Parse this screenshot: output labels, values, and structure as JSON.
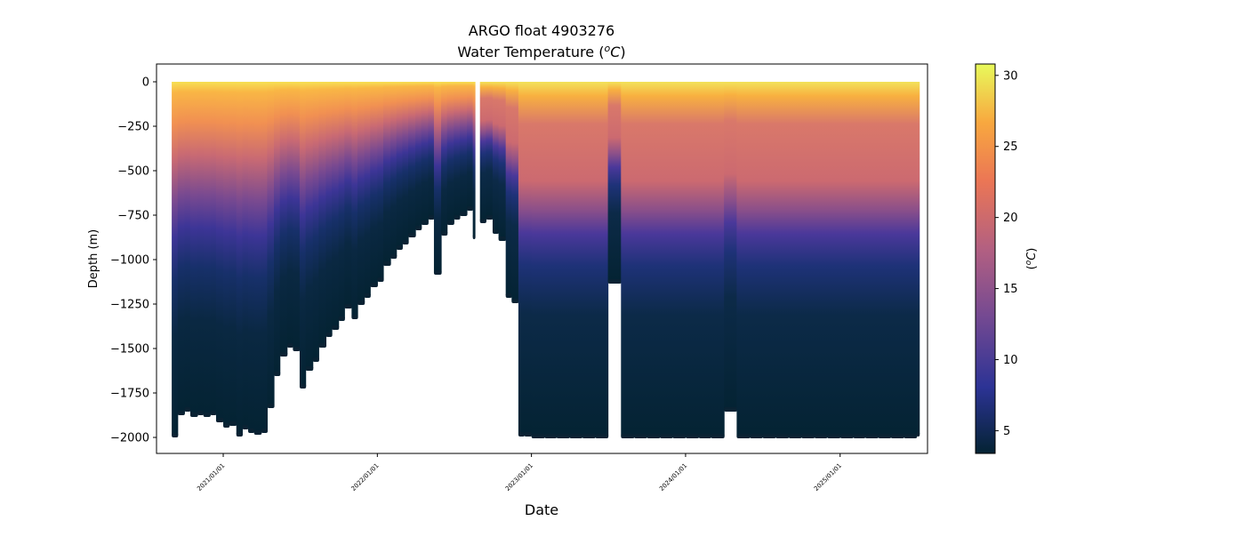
{
  "chart_data": {
    "type": "scatter",
    "title": "ARGO float 4903276",
    "subtitle_prefix": "Water Temperature (",
    "subtitle_unit_sup": "o",
    "subtitle_unit": "C",
    "subtitle_suffix": ")",
    "xlabel": "Date",
    "ylabel": "Depth (m)",
    "colorbar_label_prefix": "(",
    "colorbar_label_sup": "o",
    "colorbar_label_unit": "C",
    "colorbar_label_suffix": ")",
    "x_ticks": [
      "2021/01/01",
      "2022/01/01",
      "2023/01/01",
      "2024/01/01",
      "2025/01/01"
    ],
    "xlim": [
      "2020-07-27",
      "2025-07-27"
    ],
    "y_ticks": [
      0,
      -250,
      -500,
      -750,
      -1000,
      -1250,
      -1500,
      -1750,
      -2000
    ],
    "ylim": [
      -2090,
      100
    ],
    "colorbar_ticks": [
      5,
      10,
      15,
      20,
      25,
      30
    ],
    "colorbar_range": [
      3.4,
      30.8
    ],
    "colormap": [
      "#042333",
      "#2c3395",
      "#744992",
      "#b15f82",
      "#eb7655",
      "#f8a83f",
      "#e8fa5b"
    ],
    "grid": false,
    "profiles_max_depth": [
      [
        "2020-09-01",
        -1985
      ],
      [
        "2020-09-15",
        -1860
      ],
      [
        "2020-10-01",
        -1840
      ],
      [
        "2020-10-15",
        -1870
      ],
      [
        "2020-11-01",
        -1860
      ],
      [
        "2020-11-15",
        -1870
      ],
      [
        "2020-12-01",
        -1860
      ],
      [
        "2020-12-15",
        -1900
      ],
      [
        "2021-01-01",
        -1930
      ],
      [
        "2021-01-15",
        -1920
      ],
      [
        "2021-02-01",
        -1980
      ],
      [
        "2021-02-15",
        -1940
      ],
      [
        "2021-03-01",
        -1960
      ],
      [
        "2021-03-15",
        -1970
      ],
      [
        "2021-04-01",
        -1960
      ],
      [
        "2021-04-15",
        -1820
      ],
      [
        "2021-05-01",
        -1640
      ],
      [
        "2021-05-15",
        -1530
      ],
      [
        "2021-06-01",
        -1480
      ],
      [
        "2021-06-15",
        -1500
      ],
      [
        "2021-07-01",
        -1710
      ],
      [
        "2021-07-15",
        -1610
      ],
      [
        "2021-08-01",
        -1560
      ],
      [
        "2021-08-15",
        -1480
      ],
      [
        "2021-09-01",
        -1420
      ],
      [
        "2021-09-15",
        -1380
      ],
      [
        "2021-10-01",
        -1330
      ],
      [
        "2021-10-15",
        -1260
      ],
      [
        "2021-11-01",
        -1320
      ],
      [
        "2021-11-15",
        -1240
      ],
      [
        "2021-12-01",
        -1200
      ],
      [
        "2021-12-15",
        -1140
      ],
      [
        "2022-01-01",
        -1110
      ],
      [
        "2022-01-15",
        -1020
      ],
      [
        "2022-02-01",
        -980
      ],
      [
        "2022-02-15",
        -930
      ],
      [
        "2022-03-01",
        -900
      ],
      [
        "2022-03-15",
        -860
      ],
      [
        "2022-04-01",
        -820
      ],
      [
        "2022-04-15",
        -790
      ],
      [
        "2022-05-01",
        -760
      ],
      [
        "2022-05-15",
        -1070
      ],
      [
        "2022-06-01",
        -850
      ],
      [
        "2022-06-15",
        -790
      ],
      [
        "2022-07-01",
        -760
      ],
      [
        "2022-07-15",
        -740
      ],
      [
        "2022-08-01",
        -710
      ],
      [
        "2022-08-15",
        -870
      ],
      [
        "2022-09-01",
        -780
      ],
      [
        "2022-09-15",
        -760
      ],
      [
        "2022-10-01",
        -840
      ],
      [
        "2022-10-15",
        -880
      ],
      [
        "2022-11-01",
        -1200
      ],
      [
        "2022-11-15",
        -1230
      ],
      [
        "2022-12-01",
        -1980
      ],
      [
        "2022-12-15",
        -1980
      ],
      [
        "2023-01-01",
        -1990
      ],
      [
        "2023-02-01",
        -1990
      ],
      [
        "2023-03-01",
        -1990
      ],
      [
        "2023-04-01",
        -1990
      ],
      [
        "2023-05-01",
        -1990
      ],
      [
        "2023-06-01",
        -1990
      ],
      [
        "2023-07-01",
        -1120
      ],
      [
        "2023-08-01",
        -1990
      ],
      [
        "2023-09-01",
        -1990
      ],
      [
        "2023-10-01",
        -1990
      ],
      [
        "2023-11-01",
        -1990
      ],
      [
        "2023-12-01",
        -1990
      ],
      [
        "2024-01-01",
        -1990
      ],
      [
        "2024-02-01",
        -1990
      ],
      [
        "2024-03-01",
        -1990
      ],
      [
        "2024-04-01",
        -1840
      ],
      [
        "2024-05-01",
        -1990
      ],
      [
        "2024-06-01",
        -1990
      ],
      [
        "2024-07-01",
        -1990
      ],
      [
        "2024-08-01",
        -1990
      ],
      [
        "2024-09-01",
        -1990
      ],
      [
        "2024-10-01",
        -1990
      ],
      [
        "2024-11-01",
        -1990
      ],
      [
        "2024-12-01",
        -1990
      ],
      [
        "2025-01-01",
        -1990
      ],
      [
        "2025-02-01",
        -1990
      ],
      [
        "2025-03-01",
        -1990
      ],
      [
        "2025-04-01",
        -1990
      ],
      [
        "2025-05-01",
        -1990
      ],
      [
        "2025-06-01",
        -1990
      ],
      [
        "2025-07-01",
        -1980
      ]
    ]
  }
}
